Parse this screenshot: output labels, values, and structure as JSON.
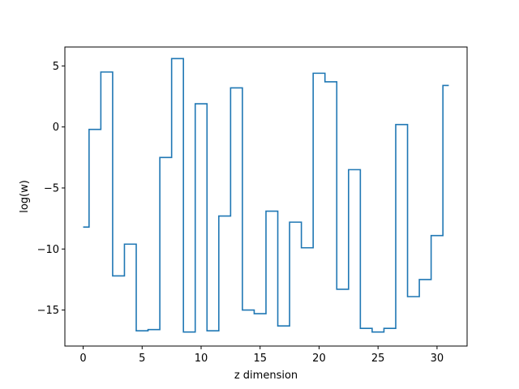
{
  "chart_data": {
    "type": "line",
    "drawstyle": "steps-mid",
    "title": "",
    "xlabel": "z dimension",
    "ylabel": "log(w)",
    "xlim": [
      -1.55,
      32.55
    ],
    "ylim": [
      -17.95,
      6.55
    ],
    "xticks": [
      0,
      5,
      10,
      15,
      20,
      25,
      30
    ],
    "yticks": [
      5,
      0,
      -5,
      -10,
      -15
    ],
    "ytick_labels": [
      "5",
      "0",
      "−5",
      "−10",
      "−15"
    ],
    "grid": false,
    "series": [
      {
        "color": "#1f77b4",
        "x": [
          0,
          1,
          2,
          3,
          4,
          5,
          6,
          7,
          8,
          9,
          10,
          11,
          12,
          13,
          14,
          15,
          16,
          17,
          18,
          19,
          20,
          21,
          22,
          23,
          24,
          25,
          26,
          27,
          28,
          29,
          30,
          31
        ],
        "y": [
          -8.2,
          -0.2,
          4.5,
          -12.2,
          -9.6,
          -16.7,
          -16.6,
          -2.5,
          5.6,
          -16.8,
          1.9,
          -16.7,
          -7.3,
          3.2,
          -15.0,
          -15.3,
          -6.9,
          -16.3,
          -7.8,
          -9.9,
          4.4,
          3.7,
          -13.3,
          -3.5,
          -16.5,
          -16.8,
          -16.5,
          0.2,
          -13.9,
          -12.5,
          -8.9,
          3.4
        ]
      }
    ]
  }
}
